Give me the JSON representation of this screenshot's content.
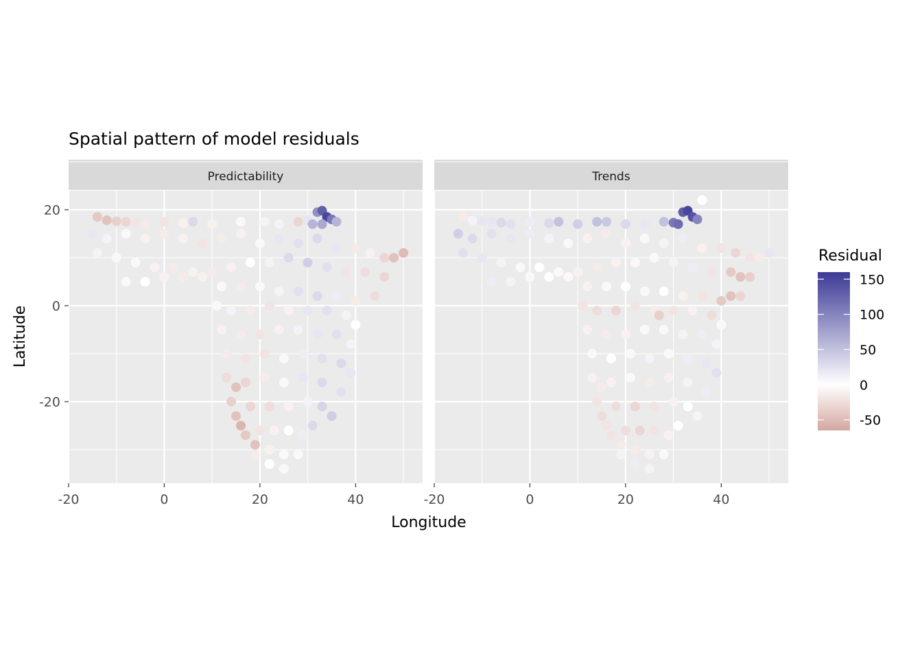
{
  "chart_data": {
    "type": "scatter",
    "title": "Spatial pattern of model residuals",
    "xlabel": "Longitude",
    "ylabel": "Latitude",
    "xlim": [
      -20,
      54
    ],
    "ylim": [
      -37,
      24
    ],
    "x_ticks": [
      -20,
      0,
      20,
      40
    ],
    "y_ticks": [
      20,
      0,
      -20
    ],
    "x_tick_labels": [
      "-20",
      "0",
      "20",
      "40"
    ],
    "y_tick_labels": [
      "20",
      "0",
      "-20"
    ],
    "grid": true,
    "panels": [
      {
        "name": "Predictability",
        "points": [
          [
            -14,
            18.5,
            -40
          ],
          [
            -12,
            17.8,
            -45
          ],
          [
            -10,
            17.6,
            -35
          ],
          [
            -8,
            17.5,
            -30
          ],
          [
            -6,
            17.3,
            -20
          ],
          [
            -4,
            17,
            -15
          ],
          [
            0,
            17.5,
            -20
          ],
          [
            4,
            17.2,
            -10
          ],
          [
            6,
            17.5,
            30
          ],
          [
            10,
            17,
            -10
          ],
          [
            16,
            17.5,
            -5
          ],
          [
            21,
            17.5,
            10
          ],
          [
            24,
            17,
            10
          ],
          [
            28,
            17.5,
            -30
          ],
          [
            30,
            17.8,
            20
          ],
          [
            32,
            19.5,
            90
          ],
          [
            33,
            19.8,
            130
          ],
          [
            34,
            18.5,
            150
          ],
          [
            35,
            18,
            110
          ],
          [
            36,
            17.5,
            60
          ],
          [
            31,
            17,
            60
          ],
          [
            33,
            17,
            70
          ],
          [
            -15,
            15,
            20
          ],
          [
            -12,
            14,
            10
          ],
          [
            -8,
            15,
            5
          ],
          [
            -4,
            14,
            -10
          ],
          [
            0,
            15,
            -15
          ],
          [
            4,
            14,
            -10
          ],
          [
            8,
            13,
            -20
          ],
          [
            12,
            14,
            -15
          ],
          [
            16,
            15,
            -10
          ],
          [
            20,
            13,
            5
          ],
          [
            24,
            14,
            20
          ],
          [
            28,
            13,
            25
          ],
          [
            32,
            14,
            30
          ],
          [
            36,
            12,
            20
          ],
          [
            40,
            12,
            -15
          ],
          [
            43,
            11,
            -10
          ],
          [
            46,
            10,
            -30
          ],
          [
            48,
            10,
            -45
          ],
          [
            50,
            11,
            -50
          ],
          [
            -14,
            11,
            10
          ],
          [
            -10,
            10,
            5
          ],
          [
            -6,
            9,
            -5
          ],
          [
            -2,
            8,
            -10
          ],
          [
            2,
            8,
            -15
          ],
          [
            6,
            7,
            -10
          ],
          [
            10,
            7,
            -15
          ],
          [
            14,
            8,
            -10
          ],
          [
            18,
            9,
            0
          ],
          [
            22,
            9,
            10
          ],
          [
            26,
            10,
            30
          ],
          [
            30,
            9,
            40
          ],
          [
            34,
            8,
            25
          ],
          [
            38,
            7,
            -20
          ],
          [
            42,
            7,
            -25
          ],
          [
            46,
            6,
            -30
          ],
          [
            -8,
            5,
            5
          ],
          [
            -4,
            5,
            0
          ],
          [
            0,
            6,
            -10
          ],
          [
            4,
            6,
            -15
          ],
          [
            8,
            6,
            -10
          ],
          [
            12,
            4,
            -5
          ],
          [
            16,
            4,
            -15
          ],
          [
            20,
            4,
            5
          ],
          [
            24,
            3,
            10
          ],
          [
            28,
            3,
            25
          ],
          [
            32,
            2,
            30
          ],
          [
            36,
            2,
            15
          ],
          [
            40,
            1,
            -15
          ],
          [
            44,
            2,
            -25
          ],
          [
            11,
            0,
            5
          ],
          [
            14,
            -1,
            10
          ],
          [
            18,
            -1,
            -15
          ],
          [
            22,
            0,
            -20
          ],
          [
            26,
            -1,
            -10
          ],
          [
            30,
            -1,
            20
          ],
          [
            34,
            -1,
            25
          ],
          [
            38,
            -2,
            10
          ],
          [
            40,
            -4,
            0
          ],
          [
            12,
            -5,
            -10
          ],
          [
            16,
            -6,
            -15
          ],
          [
            20,
            -6,
            -20
          ],
          [
            24,
            -5,
            -10
          ],
          [
            28,
            -5,
            10
          ],
          [
            32,
            -6,
            20
          ],
          [
            36,
            -6,
            25
          ],
          [
            39,
            -8,
            10
          ],
          [
            13,
            -10,
            -15
          ],
          [
            17,
            -11,
            -20
          ],
          [
            21,
            -10,
            -20
          ],
          [
            25,
            -11,
            -5
          ],
          [
            29,
            -10,
            15
          ],
          [
            33,
            -11,
            25
          ],
          [
            37,
            -12,
            30
          ],
          [
            39,
            -14,
            20
          ],
          [
            13,
            -15,
            -25
          ],
          [
            15,
            -17,
            -45
          ],
          [
            17,
            -16,
            -30
          ],
          [
            21,
            -15,
            -15
          ],
          [
            25,
            -16,
            5
          ],
          [
            29,
            -15,
            20
          ],
          [
            33,
            -16,
            30
          ],
          [
            37,
            -18,
            25
          ],
          [
            14,
            -20,
            -35
          ],
          [
            15,
            -23,
            -45
          ],
          [
            16,
            -25,
            -55
          ],
          [
            18,
            -21,
            -30
          ],
          [
            22,
            -21,
            -25
          ],
          [
            26,
            -21,
            -10
          ],
          [
            30,
            -20,
            10
          ],
          [
            33,
            -21,
            35
          ],
          [
            35,
            -23,
            40
          ],
          [
            17,
            -27,
            -40
          ],
          [
            19,
            -29,
            -45
          ],
          [
            20,
            -26,
            -20
          ],
          [
            23,
            -26,
            -10
          ],
          [
            26,
            -26,
            0
          ],
          [
            29,
            -27,
            15
          ],
          [
            31,
            -25,
            30
          ],
          [
            19,
            -31,
            -15
          ],
          [
            22,
            -30,
            -10
          ],
          [
            25,
            -31,
            -5
          ],
          [
            28,
            -31,
            5
          ],
          [
            22,
            -33,
            0
          ],
          [
            25,
            -34,
            5
          ]
        ]
      },
      {
        "name": "Trends",
        "points": [
          [
            -14,
            18.5,
            -15
          ],
          [
            -12,
            17.8,
            10
          ],
          [
            -10,
            17.6,
            20
          ],
          [
            -8,
            17.5,
            20
          ],
          [
            -6,
            17.3,
            30
          ],
          [
            -4,
            17,
            25
          ],
          [
            0,
            17.5,
            15
          ],
          [
            4,
            17.2,
            30
          ],
          [
            6,
            17.5,
            50
          ],
          [
            10,
            17,
            40
          ],
          [
            14,
            17.5,
            50
          ],
          [
            16,
            17.5,
            45
          ],
          [
            20,
            17,
            30
          ],
          [
            24,
            17,
            20
          ],
          [
            28,
            17.5,
            50
          ],
          [
            30,
            17.3,
            110
          ],
          [
            32,
            19.5,
            130
          ],
          [
            33,
            19.8,
            150
          ],
          [
            34,
            18.5,
            140
          ],
          [
            35,
            18,
            100
          ],
          [
            31,
            17,
            120
          ],
          [
            36,
            22,
            0
          ],
          [
            -15,
            15,
            40
          ],
          [
            -12,
            14,
            30
          ],
          [
            -8,
            15,
            25
          ],
          [
            -4,
            14,
            20
          ],
          [
            0,
            15,
            15
          ],
          [
            4,
            14,
            10
          ],
          [
            8,
            13,
            5
          ],
          [
            12,
            14,
            -10
          ],
          [
            16,
            15,
            -15
          ],
          [
            20,
            13,
            -10
          ],
          [
            24,
            14,
            5
          ],
          [
            28,
            13,
            10
          ],
          [
            32,
            14,
            15
          ],
          [
            36,
            12,
            -10
          ],
          [
            40,
            12,
            -20
          ],
          [
            43,
            11,
            -30
          ],
          [
            46,
            10,
            -20
          ],
          [
            48,
            10,
            -15
          ],
          [
            50,
            11,
            20
          ],
          [
            -14,
            11,
            25
          ],
          [
            -10,
            10,
            20
          ],
          [
            -6,
            9,
            10
          ],
          [
            -2,
            8,
            5
          ],
          [
            2,
            8,
            0
          ],
          [
            6,
            7,
            -5
          ],
          [
            10,
            7,
            -10
          ],
          [
            14,
            8,
            -15
          ],
          [
            18,
            9,
            -10
          ],
          [
            22,
            9,
            -5
          ],
          [
            26,
            10,
            5
          ],
          [
            30,
            9,
            10
          ],
          [
            34,
            8,
            15
          ],
          [
            38,
            7,
            -20
          ],
          [
            42,
            7,
            -40
          ],
          [
            44,
            6,
            -45
          ],
          [
            46,
            6,
            -35
          ],
          [
            -8,
            5,
            15
          ],
          [
            -4,
            5,
            10
          ],
          [
            0,
            6,
            5
          ],
          [
            4,
            6,
            0
          ],
          [
            8,
            6,
            -5
          ],
          [
            12,
            4,
            -10
          ],
          [
            16,
            4,
            -5
          ],
          [
            20,
            4,
            0
          ],
          [
            24,
            3,
            5
          ],
          [
            28,
            3,
            0
          ],
          [
            32,
            2,
            -10
          ],
          [
            36,
            2,
            -20
          ],
          [
            40,
            1,
            -40
          ],
          [
            42,
            2,
            -45
          ],
          [
            44,
            2,
            -30
          ],
          [
            11,
            0,
            -20
          ],
          [
            14,
            -1,
            -25
          ],
          [
            18,
            -1,
            -30
          ],
          [
            22,
            0,
            -20
          ],
          [
            26,
            -1,
            -15
          ],
          [
            27,
            -2,
            -35
          ],
          [
            30,
            -1,
            -20
          ],
          [
            34,
            -1,
            -10
          ],
          [
            38,
            -2,
            -25
          ],
          [
            40,
            -4,
            -5
          ],
          [
            12,
            -5,
            -10
          ],
          [
            16,
            -6,
            -15
          ],
          [
            20,
            -6,
            -10
          ],
          [
            24,
            -5,
            -5
          ],
          [
            28,
            -5,
            5
          ],
          [
            32,
            -6,
            10
          ],
          [
            36,
            -6,
            15
          ],
          [
            39,
            -8,
            10
          ],
          [
            13,
            -10,
            5
          ],
          [
            17,
            -11,
            0
          ],
          [
            21,
            -10,
            -5
          ],
          [
            25,
            -11,
            10
          ],
          [
            29,
            -10,
            5
          ],
          [
            33,
            -11,
            15
          ],
          [
            37,
            -12,
            20
          ],
          [
            39,
            -14,
            25
          ],
          [
            13,
            -15,
            -10
          ],
          [
            15,
            -17,
            -15
          ],
          [
            17,
            -16,
            -10
          ],
          [
            21,
            -15,
            -5
          ],
          [
            25,
            -16,
            -15
          ],
          [
            29,
            -15,
            -10
          ],
          [
            33,
            -16,
            10
          ],
          [
            37,
            -18,
            15
          ],
          [
            14,
            -20,
            -20
          ],
          [
            15,
            -23,
            -25
          ],
          [
            16,
            -25,
            -20
          ],
          [
            18,
            -21,
            -25
          ],
          [
            22,
            -21,
            -30
          ],
          [
            26,
            -21,
            -20
          ],
          [
            30,
            -20,
            -10
          ],
          [
            33,
            -21,
            0
          ],
          [
            35,
            -23,
            10
          ],
          [
            17,
            -27,
            -20
          ],
          [
            19,
            -29,
            -15
          ],
          [
            20,
            -26,
            -25
          ],
          [
            23,
            -26,
            -30
          ],
          [
            26,
            -26,
            -20
          ],
          [
            29,
            -27,
            -10
          ],
          [
            31,
            -25,
            0
          ],
          [
            19,
            -31,
            10
          ],
          [
            22,
            -30,
            -15
          ],
          [
            25,
            -31,
            -10
          ],
          [
            28,
            -31,
            -5
          ],
          [
            22,
            -33,
            15
          ],
          [
            25,
            -34,
            10
          ]
        ]
      }
    ],
    "legend": {
      "title": "Residual",
      "position": "right",
      "range": [
        -65,
        160
      ],
      "breaks": [
        150,
        100,
        50,
        0,
        -50
      ],
      "break_labels": [
        "150",
        "100",
        "50",
        "0",
        "-50"
      ],
      "colors": {
        "low": "#d4a7a0",
        "mid": "#ffffff",
        "high": "#3d3a96"
      }
    }
  }
}
